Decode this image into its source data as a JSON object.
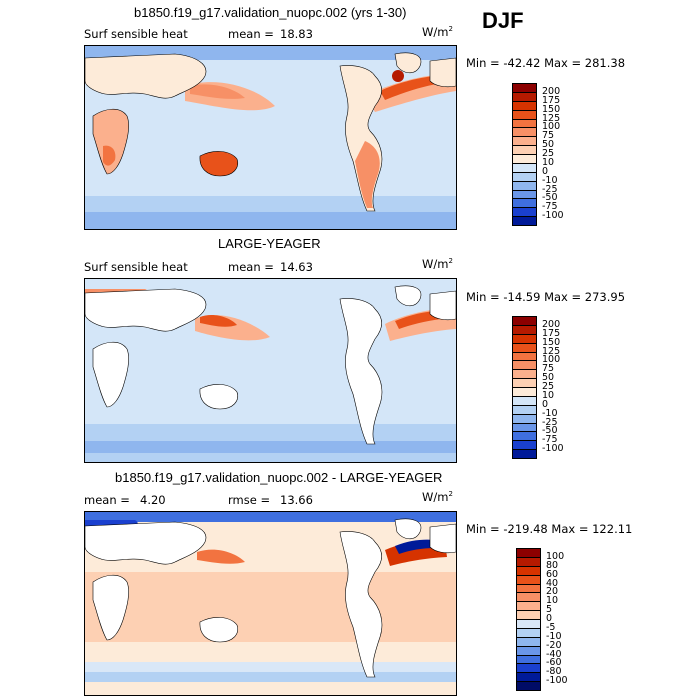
{
  "season": "DJF",
  "panels": [
    {
      "title": "b1850.f19_g17.validation_nuopc.002 (yrs 1-30)",
      "variable": "Surf sensible heat",
      "stat1_label": "mean =",
      "stat1_value": "18.83",
      "stat2_label": "",
      "stat2_value": "",
      "units": "W/m",
      "units_sup": "2",
      "minmax": "Min = -42.42 Max = 281.38",
      "ocean_hex": "#d4e6f8",
      "colorbar": {
        "labels": [
          "200",
          "175",
          "150",
          "125",
          "100",
          "75",
          "50",
          "25",
          "10",
          "0",
          "-10",
          "-25",
          "-50",
          "-75",
          "-100"
        ],
        "colors": [
          "#8c0000",
          "#b51a00",
          "#d63300",
          "#e8521a",
          "#f27340",
          "#f79066",
          "#fbb08d",
          "#fdd0b3",
          "#fdebd9",
          "#d4e6f8",
          "#b3d1f3",
          "#8fb6ee",
          "#6a96e8",
          "#3f6fdf",
          "#1a40cf",
          "#001a99"
        ]
      }
    },
    {
      "title": "LARGE-YEAGER",
      "variable": "Surf sensible heat",
      "stat1_label": "mean =",
      "stat1_value": "14.63",
      "stat2_label": "",
      "stat2_value": "",
      "units": "W/m",
      "units_sup": "2",
      "minmax": "Min = -14.59 Max = 273.95",
      "ocean_hex": "#d4e6f8",
      "colorbar": {
        "labels": [
          "200",
          "175",
          "150",
          "125",
          "100",
          "75",
          "50",
          "25",
          "10",
          "0",
          "-10",
          "-25",
          "-50",
          "-75",
          "-100"
        ],
        "colors": [
          "#8c0000",
          "#b51a00",
          "#d63300",
          "#e8521a",
          "#f27340",
          "#f79066",
          "#fbb08d",
          "#fdd0b3",
          "#fdebd9",
          "#d4e6f8",
          "#b3d1f3",
          "#8fb6ee",
          "#6a96e8",
          "#3f6fdf",
          "#1a40cf",
          "#001a99"
        ]
      }
    },
    {
      "title": "b1850.f19_g17.validation_nuopc.002 - LARGE-YEAGER",
      "variable": "",
      "stat1_label": "mean =",
      "stat1_value": "4.20",
      "stat2_label": "rmse =",
      "stat2_value": "13.66",
      "units": "W/m",
      "units_sup": "2",
      "minmax": "Min = -219.48 Max = 122.11",
      "ocean_hex": "#fde0cc",
      "colorbar": {
        "labels": [
          "100",
          "80",
          "60",
          "40",
          "20",
          "10",
          "5",
          "0",
          "-5",
          "-10",
          "-20",
          "-40",
          "-60",
          "-80",
          "-100"
        ],
        "colors": [
          "#8c0000",
          "#b51a00",
          "#d63300",
          "#e8521a",
          "#f27340",
          "#f79066",
          "#fbb08d",
          "#fdd0b3",
          "#d9e7f7",
          "#b3d1f3",
          "#8fb6ee",
          "#6a96e8",
          "#3f6fdf",
          "#1a40cf",
          "#001a99",
          "#000c66"
        ]
      }
    }
  ]
}
